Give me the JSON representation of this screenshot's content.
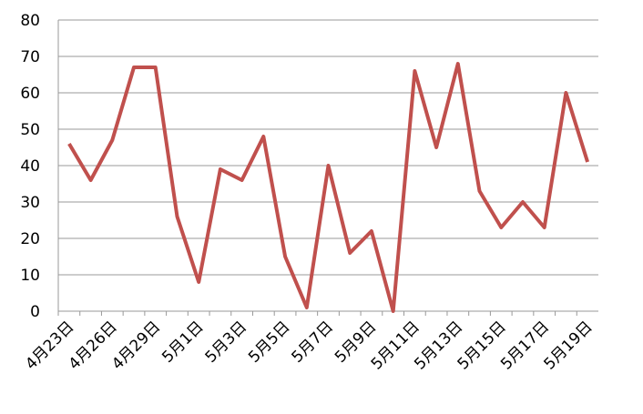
{
  "chart_data": {
    "type": "line",
    "categories": [
      "4月23日",
      null,
      "4月26日",
      null,
      "4月29日",
      null,
      "5月1日",
      null,
      "5月3日",
      null,
      "5月5日",
      null,
      "5月7日",
      null,
      "5月9日",
      null,
      "5月11日",
      null,
      "5月13日",
      null,
      "5月15日",
      null,
      "5月17日",
      null,
      "5月19日"
    ],
    "values": [
      46,
      36,
      47,
      67,
      67,
      26,
      8,
      39,
      36,
      48,
      15,
      1,
      40,
      16,
      22,
      0,
      66,
      45,
      68,
      33,
      23,
      30,
      23,
      60,
      41
    ],
    "color": "#c0504d",
    "ylim": [
      0,
      80
    ],
    "yticks": [
      0,
      10,
      20,
      30,
      40,
      50,
      60,
      70,
      80
    ],
    "grid": true
  }
}
